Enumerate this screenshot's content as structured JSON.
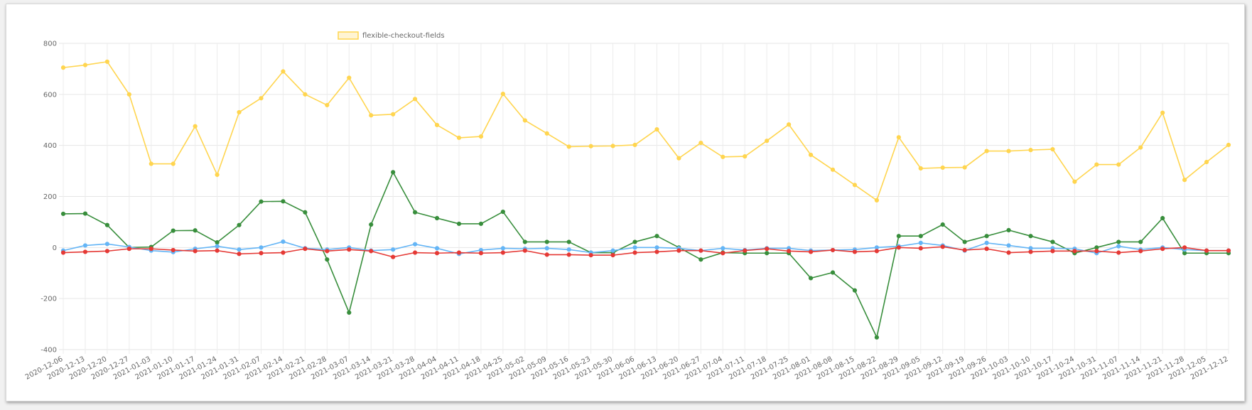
{
  "chart_data": {
    "type": "line",
    "title": "",
    "xlabel": "",
    "ylabel": "",
    "ylim": [
      -400,
      800
    ],
    "yticks": [
      -400,
      -200,
      0,
      200,
      400,
      600,
      800
    ],
    "grid": true,
    "legend_position": "top-center",
    "x": [
      "2020-12-06",
      "2020-12-13",
      "2020-12-20",
      "2020-12-27",
      "2021-01-03",
      "2021-01-10",
      "2021-01-17",
      "2021-01-24",
      "2021-01-31",
      "2021-02-07",
      "2021-02-14",
      "2021-02-21",
      "2021-02-28",
      "2021-03-07",
      "2021-03-14",
      "2021-03-21",
      "2021-03-28",
      "2021-04-04",
      "2021-04-11",
      "2021-04-18",
      "2021-04-25",
      "2021-05-02",
      "2021-05-09",
      "2021-05-16",
      "2021-05-23",
      "2021-05-30",
      "2021-06-06",
      "2021-06-13",
      "2021-06-20",
      "2021-06-27",
      "2021-07-04",
      "2021-07-11",
      "2021-07-18",
      "2021-07-25",
      "2021-08-01",
      "2021-08-08",
      "2021-08-15",
      "2021-08-22",
      "2021-08-29",
      "2021-09-05",
      "2021-09-12",
      "2021-09-19",
      "2021-09-26",
      "2021-10-03",
      "2021-10-10",
      "2021-10-17",
      "2021-10-24",
      "2021-10-31",
      "2021-11-07",
      "2021-11-14",
      "2021-11-21",
      "2021-11-28",
      "2021-12-05",
      "2021-12-12"
    ],
    "series": [
      {
        "name": "flexible-checkout-fields",
        "color": "#ffd54f",
        "values": [
          705,
          715,
          728,
          600,
          328,
          328,
          475,
          285,
          530,
          585,
          690,
          600,
          558,
          665,
          518,
          522,
          582,
          480,
          430,
          435,
          602,
          498,
          447,
          395,
          397,
          398,
          402,
          463,
          350,
          410,
          355,
          357,
          418,
          482,
          363,
          305,
          245,
          185,
          432,
          310,
          313,
          314,
          378,
          378,
          382,
          385,
          258,
          325,
          325,
          392,
          528,
          265,
          335,
          402
        ]
      },
      {
        "name": "",
        "color": "#388e3c",
        "values": [
          132,
          133,
          88,
          0,
          2,
          66,
          67,
          20,
          88,
          180,
          181,
          138,
          -47,
          -255,
          90,
          295,
          138,
          115,
          93,
          93,
          140,
          22,
          22,
          22,
          -20,
          -20,
          22,
          45,
          0,
          -47,
          -20,
          -22,
          -22,
          -22,
          -120,
          -98,
          -168,
          -352,
          45,
          45,
          90,
          22,
          45,
          68,
          45,
          22,
          -22,
          0,
          22,
          22,
          115,
          -22,
          -22,
          -22
        ]
      },
      {
        "name": "",
        "color": "#64b5f6",
        "values": [
          -12,
          8,
          14,
          2,
          -12,
          -18,
          -5,
          5,
          -8,
          0,
          23,
          -3,
          -8,
          0,
          -12,
          -8,
          13,
          -3,
          -25,
          -10,
          -3,
          -5,
          -3,
          -8,
          -20,
          -12,
          0,
          0,
          -3,
          -12,
          -3,
          -10,
          -3,
          -3,
          -12,
          -10,
          -8,
          0,
          5,
          18,
          8,
          -12,
          18,
          8,
          -3,
          -3,
          -5,
          -22,
          5,
          -8,
          0,
          -8,
          -12,
          -12
        ]
      },
      {
        "name": "",
        "color": "#e53935",
        "values": [
          -20,
          -17,
          -14,
          -5,
          -5,
          -10,
          -14,
          -12,
          -25,
          -22,
          -20,
          -5,
          -14,
          -8,
          -14,
          -37,
          -20,
          -22,
          -20,
          -22,
          -20,
          -12,
          -28,
          -28,
          -30,
          -30,
          -20,
          -17,
          -12,
          -12,
          -22,
          -12,
          -5,
          -14,
          -17,
          -10,
          -17,
          -14,
          0,
          -3,
          3,
          -10,
          -5,
          -20,
          -17,
          -14,
          -14,
          -14,
          -20,
          -14,
          -5,
          0,
          -12,
          -12
        ]
      }
    ]
  }
}
